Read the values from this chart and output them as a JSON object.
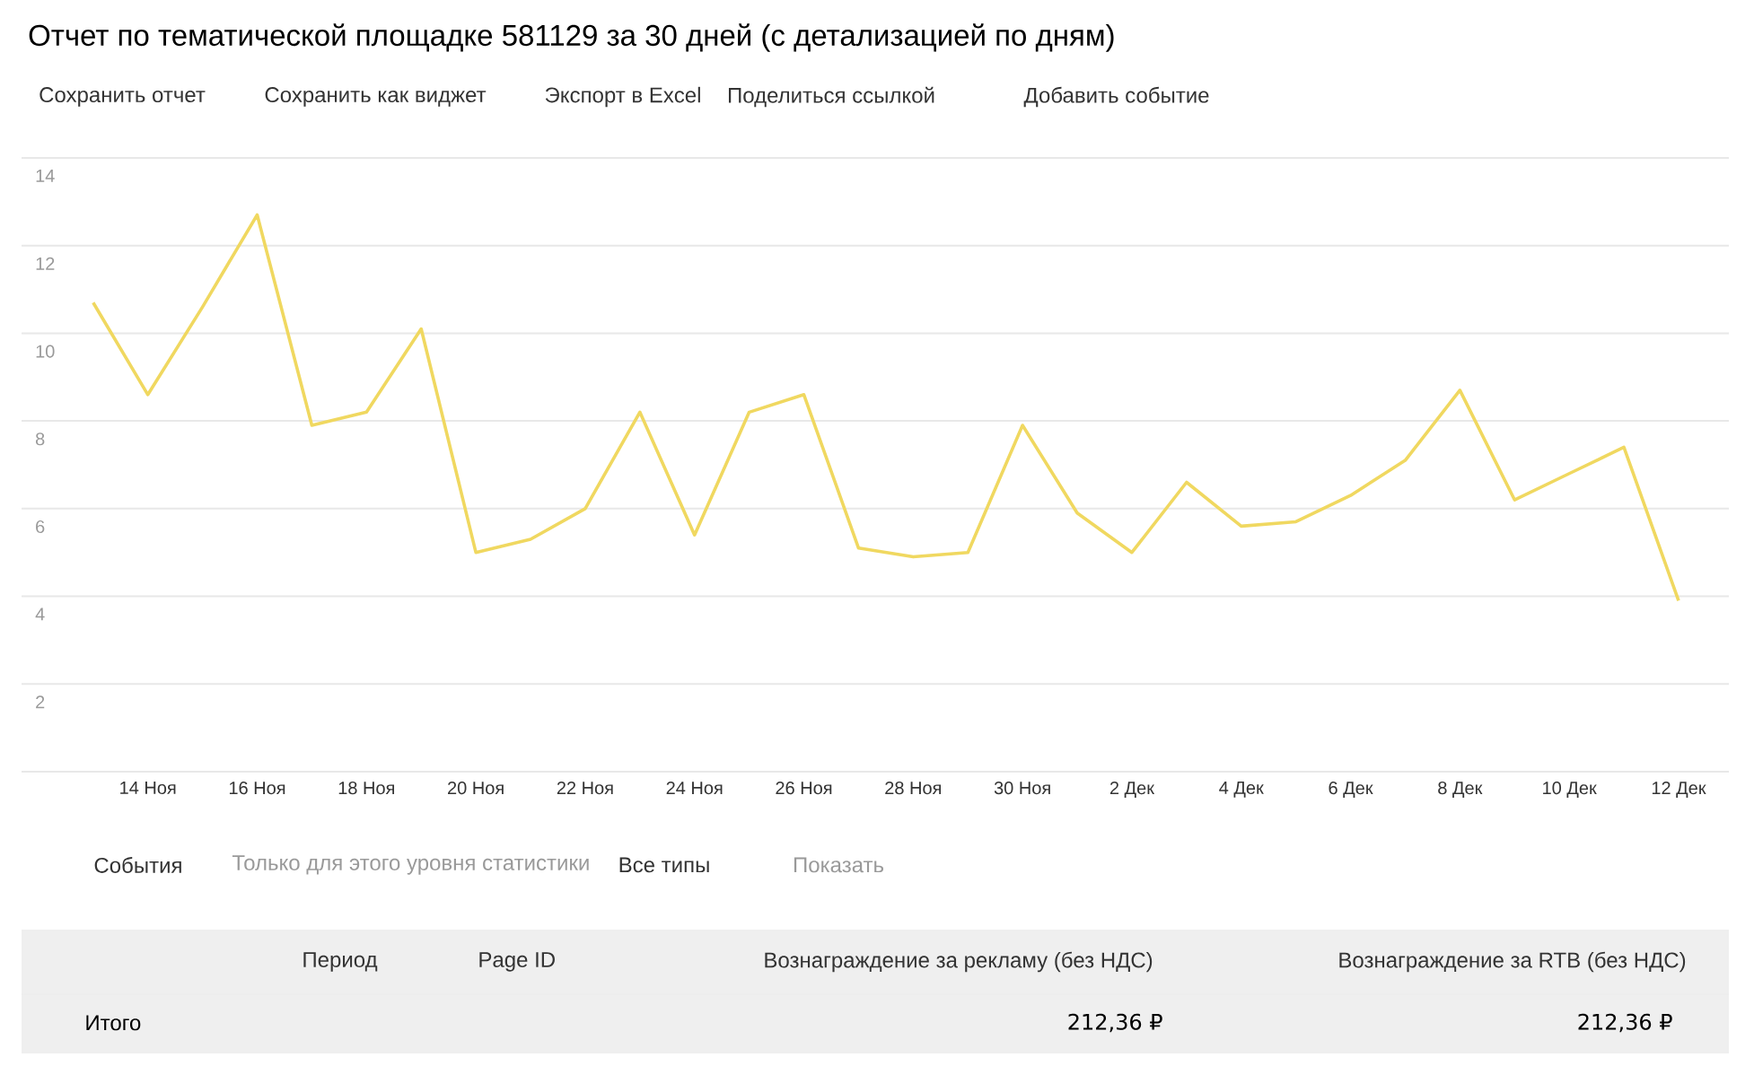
{
  "chart_data": {
    "type": "line",
    "title": "Отчет по тематической площадке 581129 за 30 дней (с детализацией по дням)",
    "categories": [
      null,
      "14 Ноя",
      null,
      "16 Ноя",
      null,
      "18 Ноя",
      null,
      "20 Ноя",
      null,
      "22 Ноя",
      null,
      "24 Ноя",
      null,
      "26 Ноя",
      null,
      "28 Ноя",
      null,
      "30 Ноя",
      null,
      "2 Дек",
      null,
      "4 Дек",
      null,
      "6 Дек",
      null,
      "8 Дек",
      null,
      "10 Дек",
      null,
      "12 Дек"
    ],
    "series": [
      {
        "color": "#f0d860",
        "values": [
          10.7,
          8.6,
          10.6,
          12.7,
          7.9,
          8.2,
          10.1,
          5.0,
          5.3,
          6.0,
          8.2,
          5.4,
          8.2,
          8.6,
          5.1,
          4.9,
          5.0,
          7.9,
          5.9,
          5.0,
          6.6,
          5.6,
          5.7,
          6.3,
          7.1,
          8.7,
          6.2,
          6.8,
          7.4,
          3.9
        ]
      }
    ],
    "ylim": [
      0,
      14
    ],
    "yticks": [
      {
        "value": 0,
        "label": null
      },
      2,
      4,
      6,
      8,
      10,
      12,
      14
    ],
    "grid": "y",
    "annotations": [
      "Сохранить отчет",
      "Сохранить как виджет",
      "Экспорт в Excel",
      "Поделиться ссылкой",
      "Добавить событие",
      "События",
      "Только для этого уровня статистики",
      "Все типы",
      "Показать",
      "Период",
      "Page ID",
      "Вознаграждение за рекламу (без НДС)",
      "Вознаграждение за RTB (без НДС)",
      "Итого",
      "212,36 ₽",
      "212,36 ₽"
    ]
  }
}
